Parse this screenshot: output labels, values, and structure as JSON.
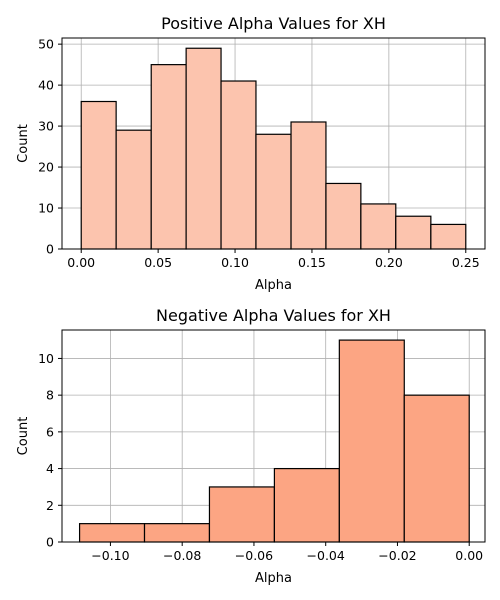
{
  "chart_data": [
    {
      "type": "bar",
      "title": "Positive Alpha Values for XH",
      "xlabel": "Alpha",
      "ylabel": "Count",
      "xlim": [
        -0.0125,
        0.2625
      ],
      "ylim": [
        0,
        51.5
      ],
      "grid": true,
      "bar_color": "#fcc4ae",
      "edge_color": "#000000",
      "bins": [
        {
          "x0": 0.0,
          "x1": 0.0227,
          "count": 36
        },
        {
          "x0": 0.0227,
          "x1": 0.0455,
          "count": 29
        },
        {
          "x0": 0.0455,
          "x1": 0.0682,
          "count": 45
        },
        {
          "x0": 0.0682,
          "x1": 0.0909,
          "count": 49
        },
        {
          "x0": 0.0909,
          "x1": 0.1136,
          "count": 41
        },
        {
          "x0": 0.1136,
          "x1": 0.1364,
          "count": 28
        },
        {
          "x0": 0.1364,
          "x1": 0.1591,
          "count": 31
        },
        {
          "x0": 0.1591,
          "x1": 0.1818,
          "count": 16
        },
        {
          "x0": 0.1818,
          "x1": 0.2045,
          "count": 11
        },
        {
          "x0": 0.2045,
          "x1": 0.2273,
          "count": 8
        },
        {
          "x0": 0.2273,
          "x1": 0.25,
          "count": 6
        }
      ],
      "xticks": [
        0.0,
        0.05,
        0.1,
        0.15,
        0.2,
        0.25
      ],
      "xtick_labels": [
        "0.00",
        "0.05",
        "0.10",
        "0.15",
        "0.20",
        "0.25"
      ],
      "yticks": [
        0,
        10,
        20,
        30,
        40,
        50
      ],
      "ytick_labels": [
        "0",
        "10",
        "20",
        "30",
        "40",
        "50"
      ]
    },
    {
      "type": "bar",
      "title": "Negative Alpha Values for XH",
      "xlabel": "Alpha",
      "ylabel": "Count",
      "xlim": [
        -0.1135,
        0.0044
      ],
      "ylim": [
        0,
        11.55
      ],
      "grid": true,
      "bar_color": "#fca583",
      "edge_color": "#000000",
      "bins": [
        {
          "x0": -0.1086,
          "x1": -0.0905,
          "count": 1
        },
        {
          "x0": -0.0905,
          "x1": -0.0724,
          "count": 1
        },
        {
          "x0": -0.0724,
          "x1": -0.0543,
          "count": 3
        },
        {
          "x0": -0.0543,
          "x1": -0.0362,
          "count": 4
        },
        {
          "x0": -0.0362,
          "x1": -0.0181,
          "count": 11
        },
        {
          "x0": -0.0181,
          "x1": 0.0,
          "count": 8
        }
      ],
      "xticks": [
        -0.1,
        -0.08,
        -0.06,
        -0.04,
        -0.02,
        0.0
      ],
      "xtick_labels": [
        "−0.10",
        "−0.08",
        "−0.06",
        "−0.04",
        "−0.02",
        "0.00"
      ],
      "yticks": [
        0,
        2,
        4,
        6,
        8,
        10
      ],
      "ytick_labels": [
        "0",
        "2",
        "4",
        "6",
        "8",
        "10"
      ]
    }
  ]
}
